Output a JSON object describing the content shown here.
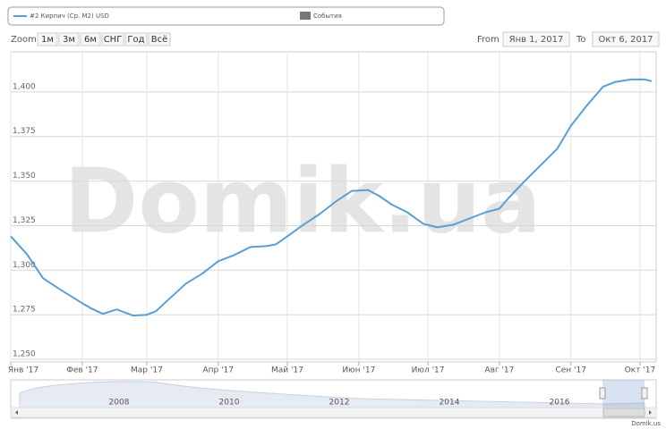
{
  "chart_data": {
    "type": "line",
    "x": [
      "2017-01-01",
      "2017-01-08",
      "2017-01-15",
      "2017-01-22",
      "2017-02-01",
      "2017-02-05",
      "2017-02-10",
      "2017-02-16",
      "2017-02-23",
      "2017-03-01",
      "2017-03-05",
      "2017-03-10",
      "2017-03-18",
      "2017-03-25",
      "2017-04-01",
      "2017-04-08",
      "2017-04-15",
      "2017-04-22",
      "2017-04-26",
      "2017-05-01",
      "2017-05-08",
      "2017-05-15",
      "2017-05-22",
      "2017-05-29",
      "2017-06-05",
      "2017-06-10",
      "2017-06-15",
      "2017-06-22",
      "2017-06-29",
      "2017-07-05",
      "2017-07-12",
      "2017-07-19",
      "2017-07-26",
      "2017-08-01",
      "2017-08-05",
      "2017-08-12",
      "2017-08-19",
      "2017-08-26",
      "2017-09-01",
      "2017-09-08",
      "2017-09-15",
      "2017-09-20",
      "2017-09-27",
      "2017-10-03",
      "2017-10-06"
    ],
    "series": [
      {
        "name": "#2 Кирпич (Ср. М2) USD",
        "color": "#58a0d4",
        "values": [
          1319,
          1309,
          1295.5,
          1289.5,
          1281.5,
          1278.5,
          1275.5,
          1278,
          1274.5,
          1275,
          1277,
          1283,
          1292.5,
          1298,
          1305,
          1308.5,
          1313,
          1313.5,
          1314.5,
          1319,
          1325.5,
          1331.5,
          1338.5,
          1344.5,
          1345,
          1341.5,
          1337,
          1332.5,
          1326,
          1324,
          1325.5,
          1329,
          1332.5,
          1334.5,
          1340.5,
          1350,
          1359,
          1368,
          1381,
          1392.5,
          1403,
          1405.5,
          1407,
          1407,
          1406
        ]
      }
    ],
    "xlim": [
      "2017-01-01",
      "2017-10-08"
    ],
    "xticks": [
      {
        "value": "2017-01-01",
        "label": "Янв '17"
      },
      {
        "value": "2017-02-01",
        "label": "Фев '17"
      },
      {
        "value": "2017-03-01",
        "label": "Мар '17"
      },
      {
        "value": "2017-04-01",
        "label": "Апр '17"
      },
      {
        "value": "2017-05-01",
        "label": "Май '17"
      },
      {
        "value": "2017-06-01",
        "label": "Июн '17"
      },
      {
        "value": "2017-07-01",
        "label": "Июл '17"
      },
      {
        "value": "2017-08-01",
        "label": "Авг '17"
      },
      {
        "value": "2017-09-01",
        "label": "Сен '17"
      },
      {
        "value": "2017-10-01",
        "label": "Окт '17"
      }
    ],
    "ylim": [
      1248.5,
      1422.5
    ],
    "yticks": [
      {
        "value": 1250,
        "label": "1,250"
      },
      {
        "value": 1275,
        "label": "1,275"
      },
      {
        "value": 1300,
        "label": "1,300"
      },
      {
        "value": 1325,
        "label": "1,325"
      },
      {
        "value": 1350,
        "label": "1,350"
      },
      {
        "value": 1375,
        "label": "1,375"
      },
      {
        "value": 1400,
        "label": "1,400"
      }
    ],
    "grid": true
  },
  "events_label": "События",
  "range_selector": {
    "zoom_label": "Zoom",
    "buttons": [
      "1м",
      "3м",
      "6м",
      "СНГ",
      "Год",
      "Всё"
    ],
    "from_label": "From",
    "from": "Янв 1, 2017",
    "to_label": "To",
    "to": "Окт 6, 2017"
  },
  "watermark": "Domik.ua",
  "navigator_labels": [
    "2008",
    "2010",
    "2012",
    "2014",
    "2016"
  ],
  "credit": "Domik.us"
}
